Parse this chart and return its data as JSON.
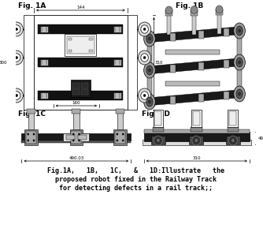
{
  "caption_line1": "Fig.1A,   1B,   1C,   &   1D:Illustrate   the",
  "caption_line2": "proposed robot fixed in the Railway Track",
  "caption_line3": "for detecting defects in a rail track;;",
  "fig1A_label": "Fig. 1A",
  "fig1B_label": "Fig. 1B",
  "fig1C_label": "Fig. 1C",
  "fig1D_label": "Fig. 1D",
  "dim_144": "144",
  "dim_300": "300",
  "dim_310": "310",
  "dim_160": "160",
  "dim_490": "490.03",
  "dim_310d": "310",
  "dim_49": "49",
  "bg": "#ffffff",
  "black": "#000000",
  "darkgray": "#333333",
  "midgray": "#888888",
  "lightgray": "#cccccc",
  "verylightgray": "#eeeeee"
}
